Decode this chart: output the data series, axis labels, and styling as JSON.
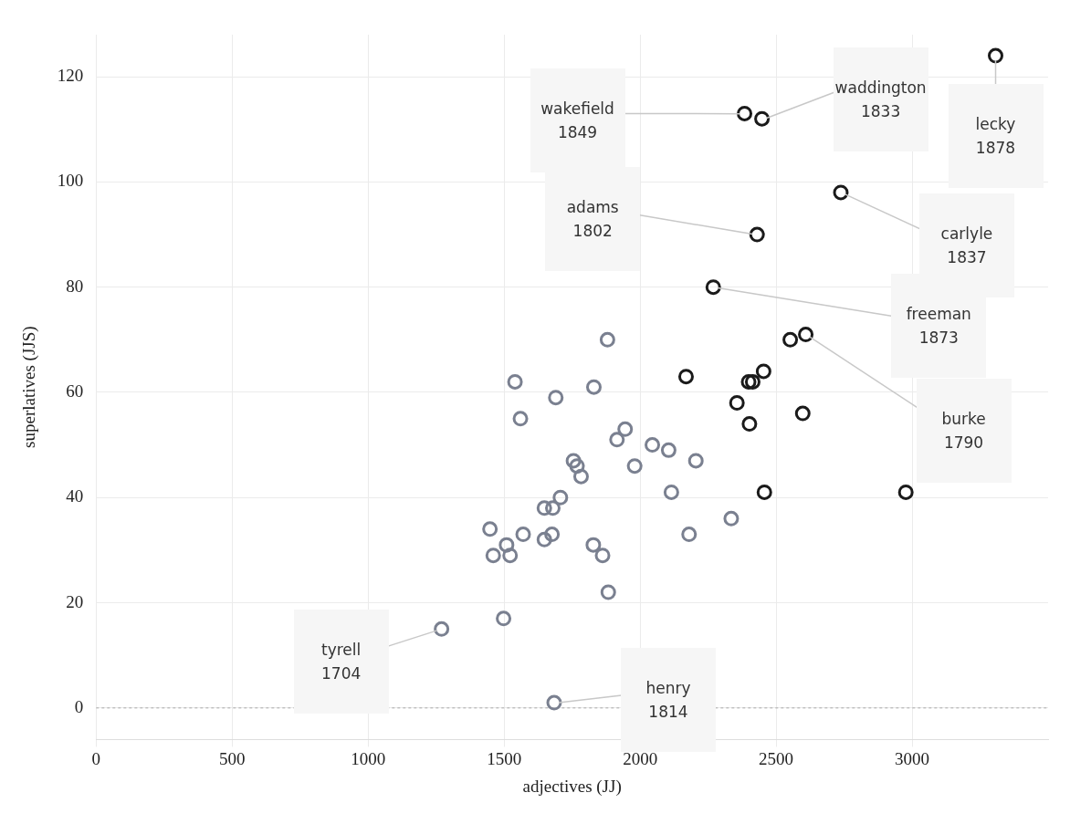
{
  "chart_data": {
    "type": "scatter",
    "xlabel": "adjectives (JJ)",
    "ylabel": "superlatives (JJS)",
    "xlim": [
      0,
      3500
    ],
    "ylim": [
      -6,
      128
    ],
    "xticks": [
      0,
      500,
      1000,
      1500,
      2000,
      2500,
      3000
    ],
    "yticks": [
      0,
      20,
      40,
      60,
      80,
      100,
      120
    ],
    "grid": true,
    "legend": false,
    "marker": "circle",
    "ref_lines": [
      {
        "axis": "y",
        "value": 0,
        "color": "#aaaaaa",
        "line_style": "dashed"
      }
    ],
    "series": [
      {
        "color": "#7a8090",
        "x": [
          1880,
          1540,
          1690,
          1830,
          1560,
          1945,
          1915,
          2045,
          2105,
          2205,
          1980,
          1755,
          1768,
          1783,
          2115,
          1707,
          1648,
          1679,
          2335,
          1448,
          1570,
          1676,
          1648,
          1509,
          1828,
          2180,
          1460,
          1522,
          1862,
          1883,
          1498,
          1270,
          1684
        ],
        "values": [
          70,
          62,
          59,
          61,
          55,
          53,
          51,
          50,
          49,
          47,
          46,
          47,
          46,
          44,
          41,
          40,
          38,
          38,
          36,
          34,
          33,
          33,
          32,
          31,
          31,
          33,
          29,
          29,
          29,
          22,
          17,
          15,
          1
        ]
      },
      {
        "color": "#1a1a1a",
        "x": [
          3307,
          2384,
          2448,
          2738,
          2430,
          2269,
          2552,
          2609,
          2169,
          2399,
          2414,
          2454,
          2356,
          2402,
          2598,
          2457,
          2977
        ],
        "values": [
          124,
          113,
          112,
          98,
          90,
          80,
          70,
          71,
          63,
          62,
          62,
          64,
          58,
          54,
          56,
          41,
          41
        ]
      }
    ],
    "annotations": [
      {
        "text": "wakefield\n1849",
        "x": 2384,
        "y": 113
      },
      {
        "text": "waddington\n1833",
        "x": 2448,
        "y": 112
      },
      {
        "text": "lecky\n1878",
        "x": 3307,
        "y": 124
      },
      {
        "text": "adams\n1802",
        "x": 2430,
        "y": 90
      },
      {
        "text": "carlyle\n1837",
        "x": 2738,
        "y": 98
      },
      {
        "text": "freeman\n1873",
        "x": 2269,
        "y": 80
      },
      {
        "text": "burke\n1790",
        "x": 2609,
        "y": 71
      },
      {
        "text": "tyrell\n1704",
        "x": 1270,
        "y": 15
      },
      {
        "text": "henry\n1814",
        "x": 1684,
        "y": 1
      }
    ]
  }
}
